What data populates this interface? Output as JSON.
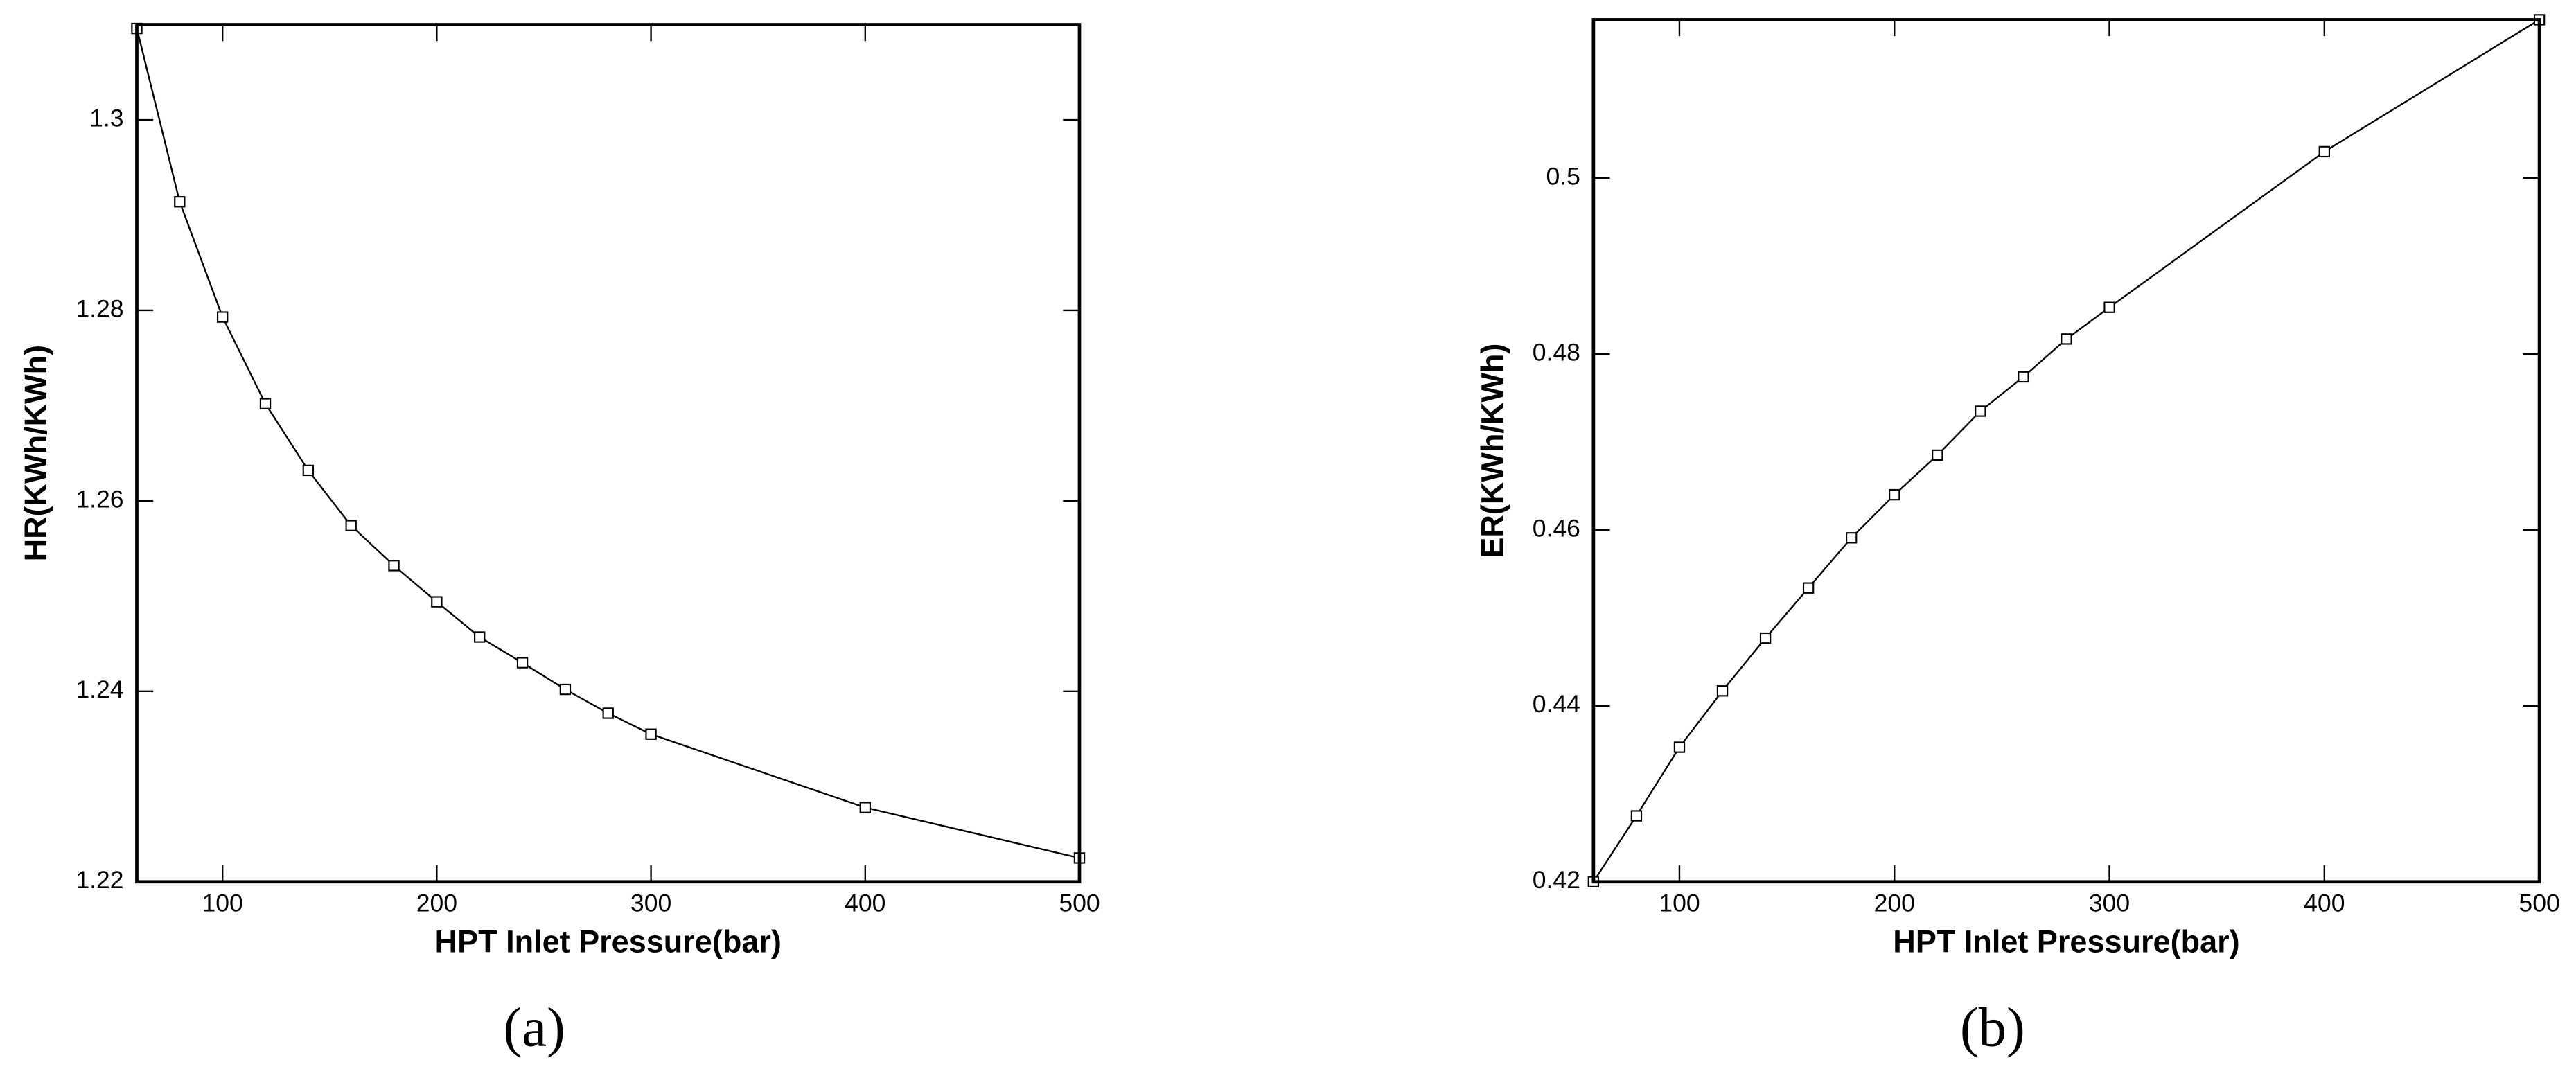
{
  "chart_data": [
    {
      "type": "line",
      "caption": "(a)",
      "x_label": "HPT Inlet Pressure(bar)",
      "y_label": "HR(KWh/KWh)",
      "x": [
        60,
        80,
        100,
        120,
        140,
        160,
        180,
        200,
        220,
        240,
        260,
        280,
        300,
        400,
        500
      ],
      "values": [
        1.3096,
        1.2914,
        1.2793,
        1.2702,
        1.2632,
        1.2574,
        1.2532,
        1.2494,
        1.2457,
        1.243,
        1.2402,
        1.2377,
        1.2355,
        1.2278,
        1.2225
      ],
      "color": "#000000",
      "marker": "square",
      "xlim": [
        60,
        500
      ],
      "xticks": [
        100,
        200,
        300,
        400,
        500
      ],
      "ylim": [
        1.22,
        1.31
      ],
      "yticks": [
        1.22,
        1.24,
        1.26,
        1.28,
        1.3
      ]
    },
    {
      "type": "line",
      "caption": "(b)",
      "x_label": "HPT Inlet Pressure(bar)",
      "y_label": "ER(KWh/KWh)",
      "x": [
        60,
        80,
        100,
        120,
        140,
        160,
        180,
        200,
        220,
        240,
        260,
        280,
        300,
        400,
        500
      ],
      "values": [
        0.42,
        0.4275,
        0.4353,
        0.4417,
        0.4477,
        0.4534,
        0.4591,
        0.464,
        0.4685,
        0.4735,
        0.4774,
        0.4817,
        0.4853,
        0.503,
        0.518
      ],
      "color": "#000000",
      "marker": "square",
      "xlim": [
        60,
        500
      ],
      "xticks": [
        100,
        200,
        300,
        400,
        500
      ],
      "ylim": [
        0.42,
        0.518
      ],
      "yticks": [
        0.42,
        0.44,
        0.46,
        0.48,
        0.5
      ]
    }
  ]
}
